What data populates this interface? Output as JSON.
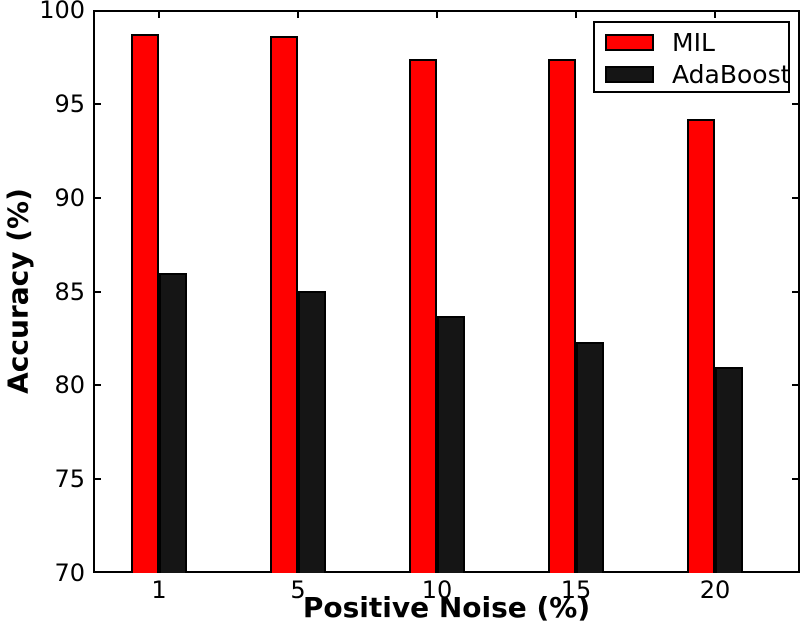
{
  "chart_data": {
    "type": "bar",
    "title": "",
    "xlabel": "Positive Noise (%)",
    "ylabel": "Accuracy (%)",
    "categories": [
      "1",
      "5",
      "10",
      "15",
      "20"
    ],
    "series": [
      {
        "name": "MIL",
        "color": "#ff0000",
        "values": [
          98.7,
          98.6,
          97.4,
          97.4,
          94.2
        ]
      },
      {
        "name": "AdaBoost",
        "color": "#151515",
        "values": [
          86.0,
          85.0,
          83.7,
          82.3,
          81.0
        ]
      }
    ],
    "ylim": [
      70,
      100
    ],
    "yticks": [
      70,
      75,
      80,
      85,
      90,
      95,
      100
    ],
    "grid": false,
    "legend_position": "upper right",
    "tick_direction": "in",
    "frame_color": "#000000"
  }
}
